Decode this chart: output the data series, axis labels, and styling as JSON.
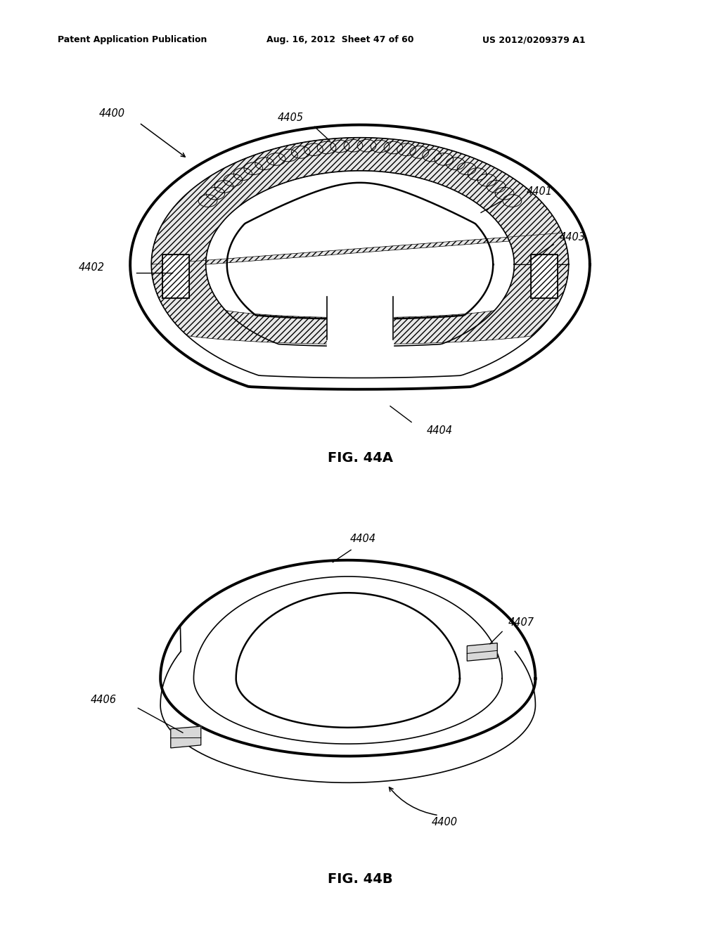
{
  "header_left": "Patent Application Publication",
  "header_mid": "Aug. 16, 2012  Sheet 47 of 60",
  "header_right": "US 2012/0209379 A1",
  "fig_a_label": "FIG. 44A",
  "fig_b_label": "FIG. 44B",
  "bg_color": "#ffffff",
  "line_color": "#000000"
}
